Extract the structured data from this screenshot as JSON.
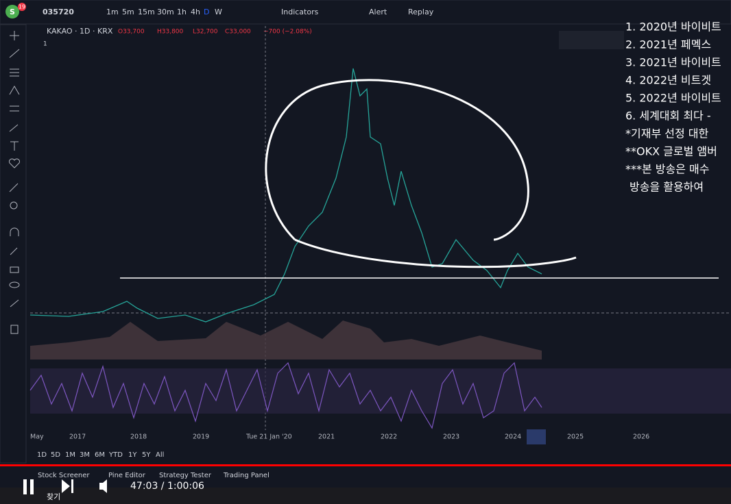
{
  "toolbar": {
    "badge": "19",
    "avatar": "S",
    "symbol": "035720",
    "intervals": [
      "1m",
      "5m",
      "15m",
      "30m",
      "1h",
      "4h",
      "D",
      "W"
    ],
    "indicators": "Indicators",
    "alert": "Alert",
    "replay": "Replay"
  },
  "legend": {
    "title": "KAKAO · 1D · KRX",
    "open": "O33,700",
    "high": "H33,800",
    "low": "L32,700",
    "close": "C33,000",
    "change": "−700 (−2.08%)",
    "pane": "1"
  },
  "overlay": {
    "lines": [
      "1. 2020년 바이비트",
      "2. 2021년 페멕스",
      "3. 2021년 바이비트",
      "4. 2022년 비트겟",
      "5. 2022년 바이비트",
      "6. 세계대회 최다 -",
      "*기재부 선정 대한",
      "**OKX 글로벌 앰버",
      "***본 방송은 매수",
      "방송을 활용하여"
    ]
  },
  "time_axis": {
    "labels": [
      "May",
      "2017",
      "2018",
      "2019",
      "Tue 21 Jan '20",
      "2021",
      "2022",
      "2023",
      "2024",
      "2025",
      "2026"
    ]
  },
  "ranges": [
    "1D",
    "5D",
    "1M",
    "3M",
    "6M",
    "YTD",
    "1Y",
    "5Y",
    "All"
  ],
  "panel_tabs": [
    "Stock Screener",
    "Pine Editor",
    "Strategy Tester",
    "Trading Panel"
  ],
  "video": {
    "time": "47:03 / 1:00:06"
  },
  "taskbar": {
    "search": "찾기"
  }
}
